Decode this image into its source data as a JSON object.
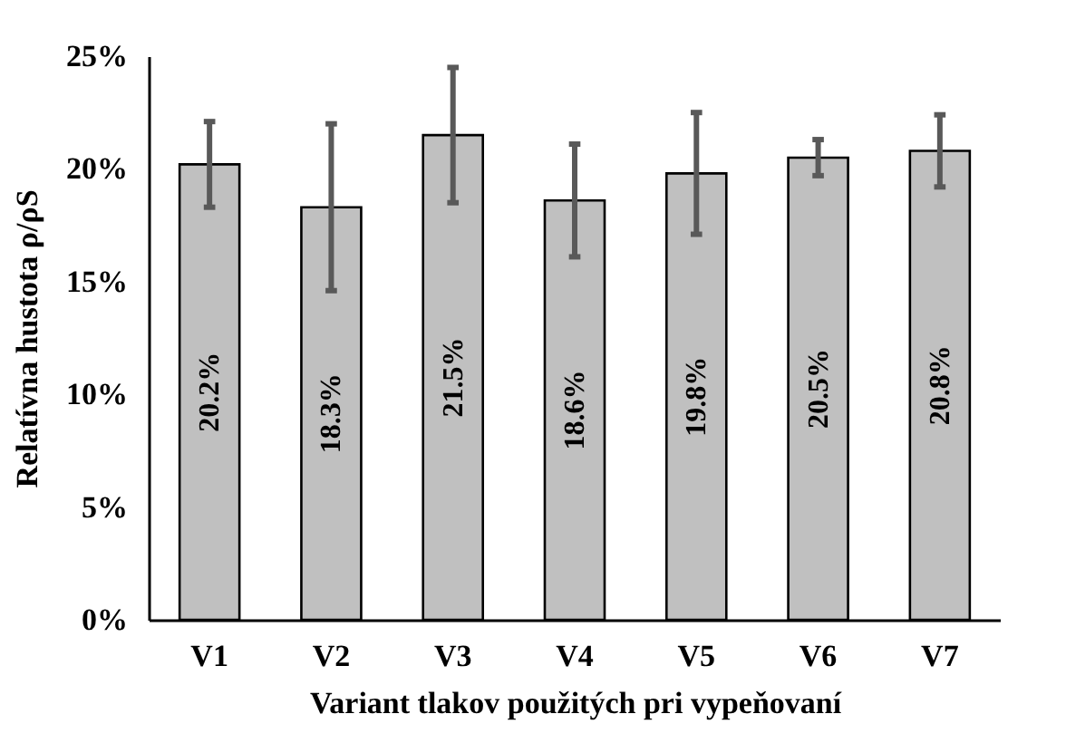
{
  "chart_data": {
    "type": "bar",
    "xlabel": "Variant tlakov použitých pri vypeňovaní",
    "ylabel": "Relatívna hustota ρ/ρS",
    "categories": [
      "V1",
      "V2",
      "V3",
      "V4",
      "V5",
      "V6",
      "V7"
    ],
    "values": [
      20.2,
      18.3,
      21.5,
      18.6,
      19.8,
      20.5,
      20.8
    ],
    "errors": [
      1.9,
      3.7,
      3.0,
      2.5,
      2.7,
      0.8,
      1.6
    ],
    "value_labels": [
      "20.2%",
      "18.3%",
      "21.5%",
      "18.6%",
      "19.8%",
      "20.5%",
      "20.8%"
    ],
    "color": "#c0c0c0",
    "ylim": [
      0,
      25
    ],
    "yticks": [
      {
        "value": 0,
        "label": "0%"
      },
      {
        "value": 5,
        "label": "5%"
      },
      {
        "value": 10,
        "label": "10%"
      },
      {
        "value": 15,
        "label": "15%"
      },
      {
        "value": 20,
        "label": "20%"
      },
      {
        "value": 25,
        "label": "25%"
      }
    ],
    "grid": false
  }
}
